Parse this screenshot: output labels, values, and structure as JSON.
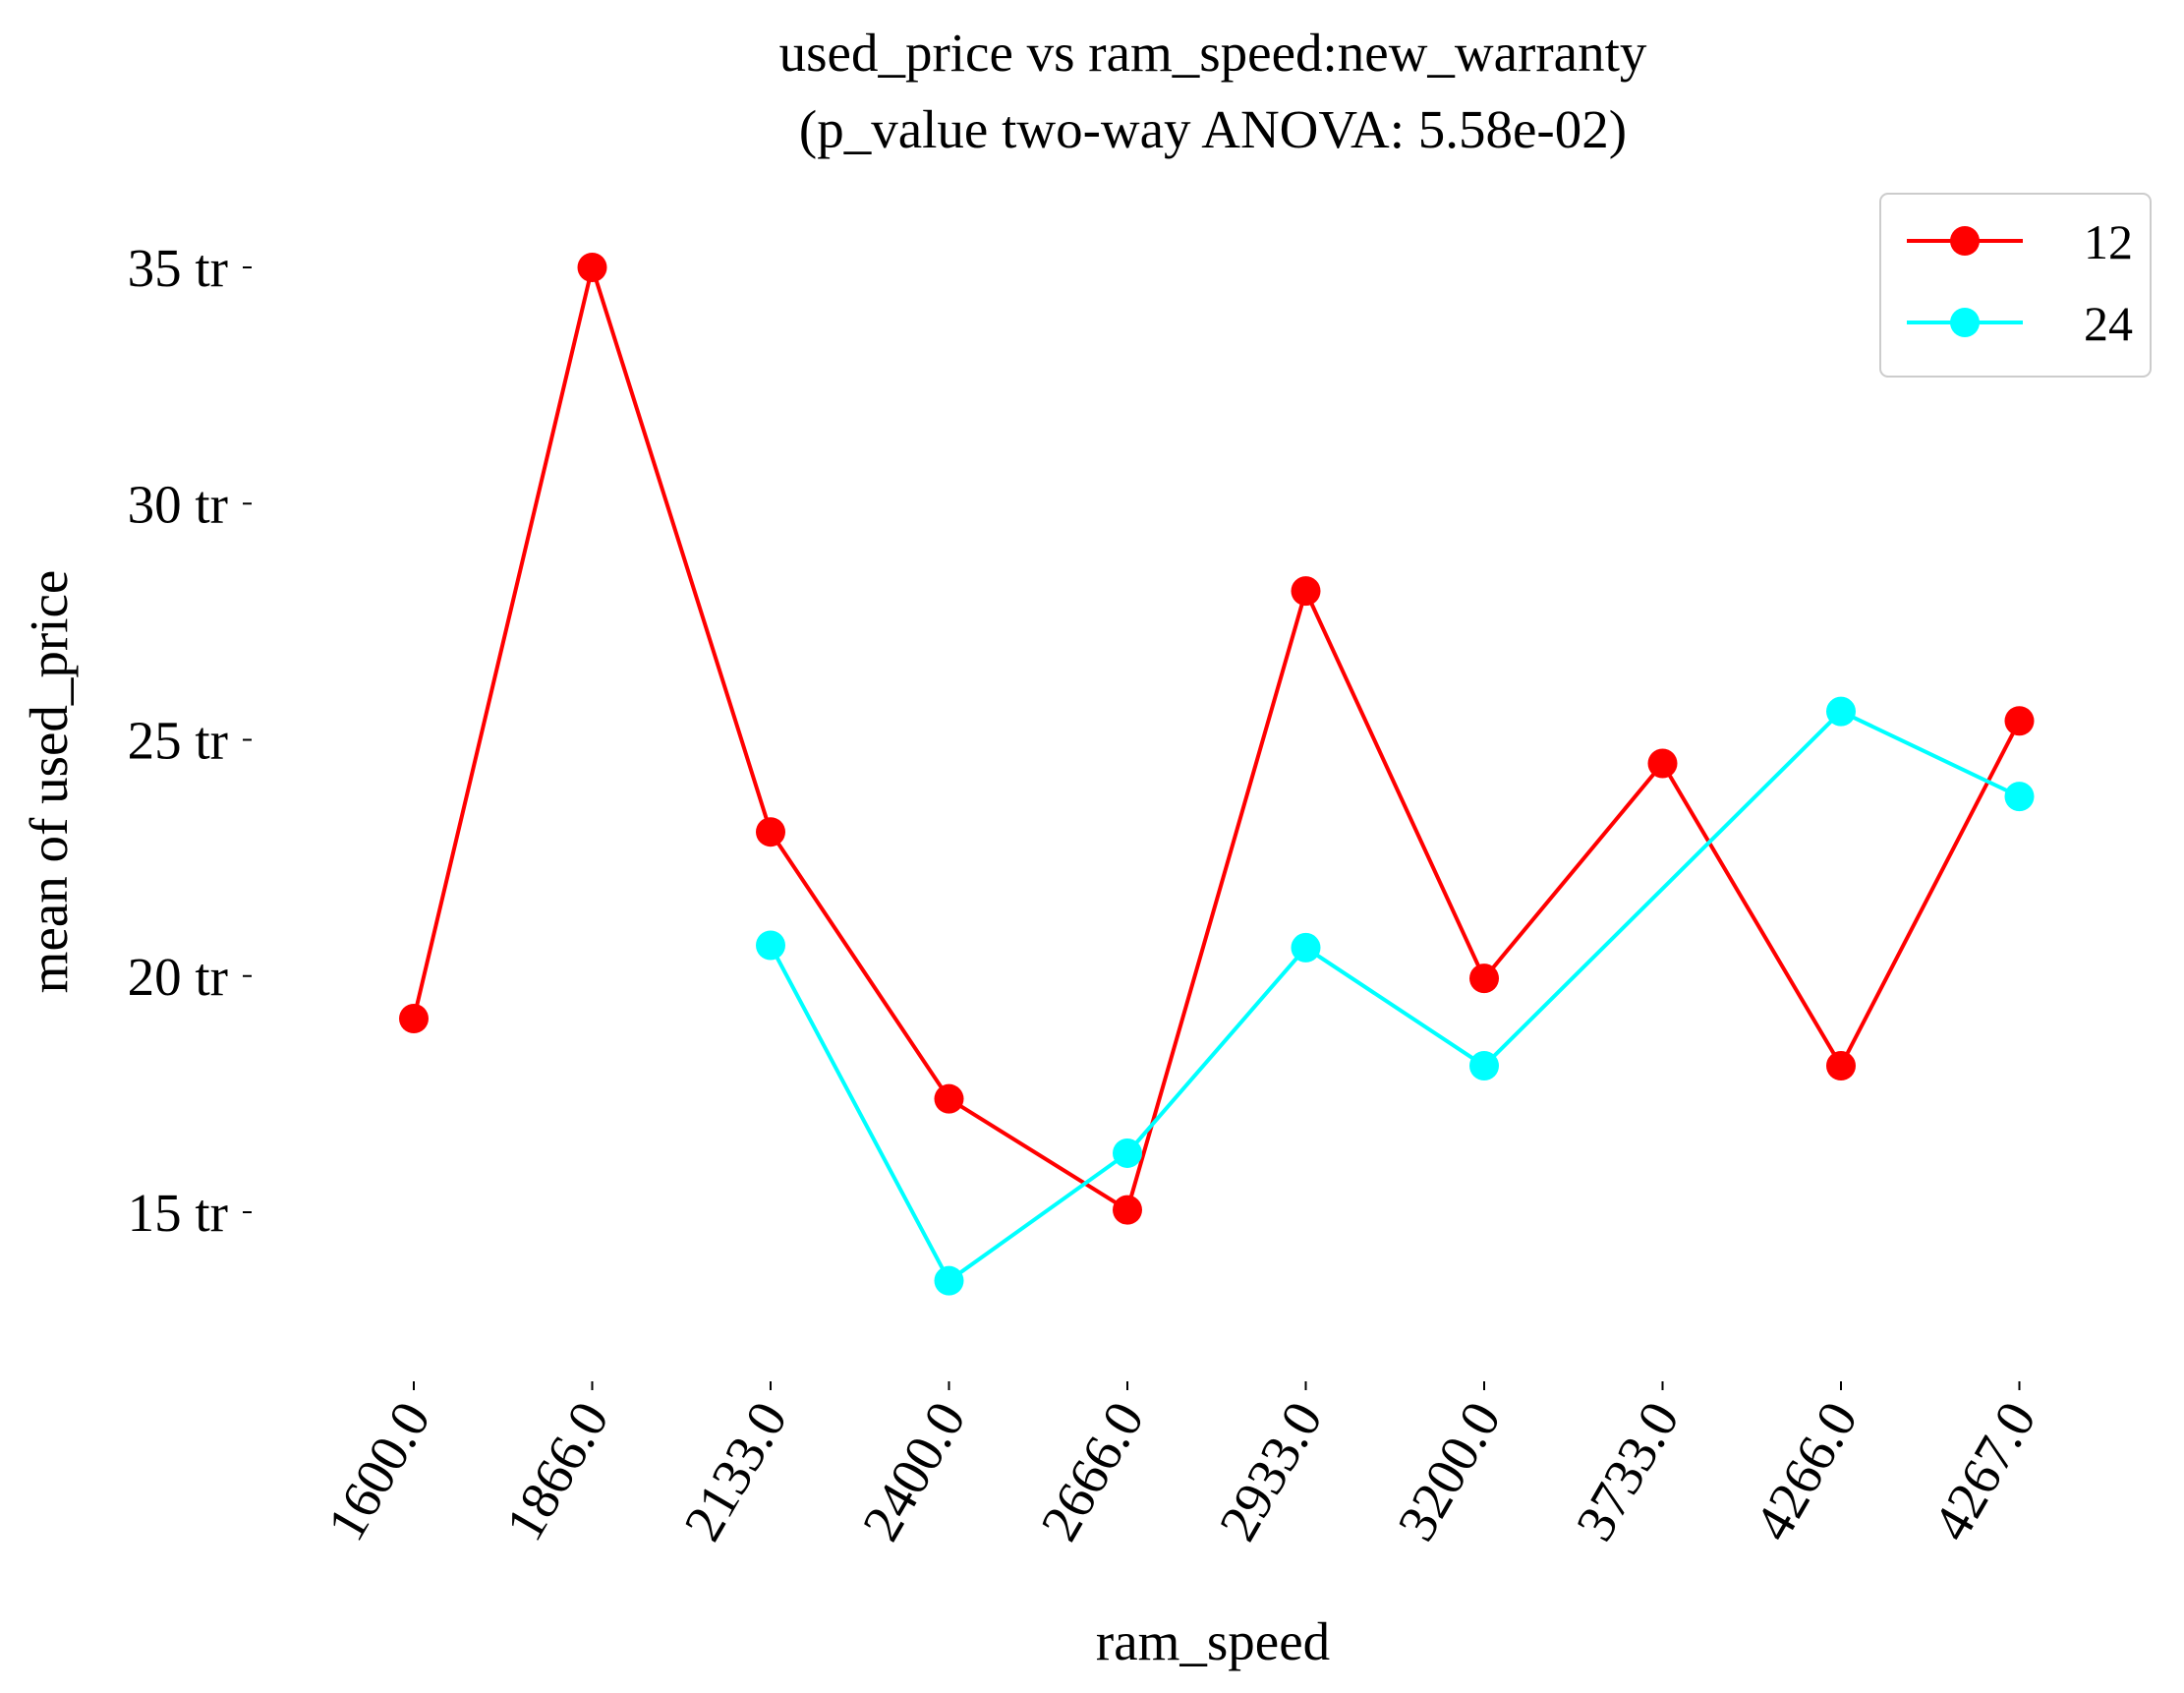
{
  "chart_data": {
    "type": "line",
    "title_line1": "used_price vs ram_speed:new_warranty",
    "title_line2": "(p_value two-way ANOVA: 5.58e-02)",
    "xlabel": "ram_speed",
    "ylabel": "mean of used_price",
    "categories": [
      "1600.0",
      "1866.0",
      "2133.0",
      "2400.0",
      "2666.0",
      "2933.0",
      "3200.0",
      "3733.0",
      "4266.0",
      "4267.0"
    ],
    "y_ticks": [
      {
        "value": 15000000,
        "label": "15 tr"
      },
      {
        "value": 20000000,
        "label": "20 tr"
      },
      {
        "value": 25000000,
        "label": "25 tr"
      },
      {
        "value": 30000000,
        "label": "30 tr"
      },
      {
        "value": 35000000,
        "label": "35 tr"
      }
    ],
    "ylim": [
      11500000,
      36500000
    ],
    "grid": false,
    "legend_position": "top-right",
    "series": [
      {
        "name": "12",
        "color": "#ff0000",
        "values": [
          19100000,
          35000000,
          23050000,
          17400000,
          15050000,
          28150000,
          19950000,
          24500000,
          18100000,
          25400000
        ]
      },
      {
        "name": "24",
        "color": "#00ffff",
        "values": [
          null,
          null,
          20650000,
          13550000,
          16250000,
          20600000,
          18100000,
          null,
          25600000,
          23800000
        ]
      }
    ]
  }
}
